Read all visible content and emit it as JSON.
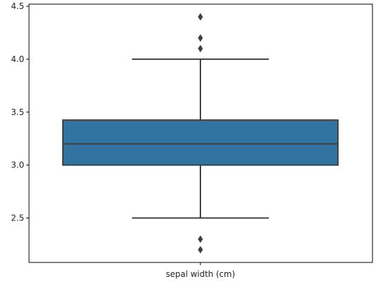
{
  "chart_data": {
    "type": "box",
    "categories": [
      "sepal width (cm)"
    ],
    "box": {
      "whisker_low": 2.5,
      "q1": 3.0,
      "median": 3.2,
      "q3": 3.425,
      "whisker_high": 4.0,
      "outliers": [
        4.4,
        4.2,
        4.1,
        2.3,
        2.2
      ]
    },
    "y_ticks": [
      2.5,
      3.0,
      3.5,
      4.0,
      4.5
    ],
    "y_tick_labels": [
      "2.5",
      "3.0",
      "3.5",
      "4.0",
      "4.5"
    ],
    "ylim": [
      2.08,
      4.52
    ],
    "grid": false,
    "colors": {
      "box_fill": "#3274a1",
      "lines": "#3f3f3f",
      "axes": "#000000"
    }
  }
}
